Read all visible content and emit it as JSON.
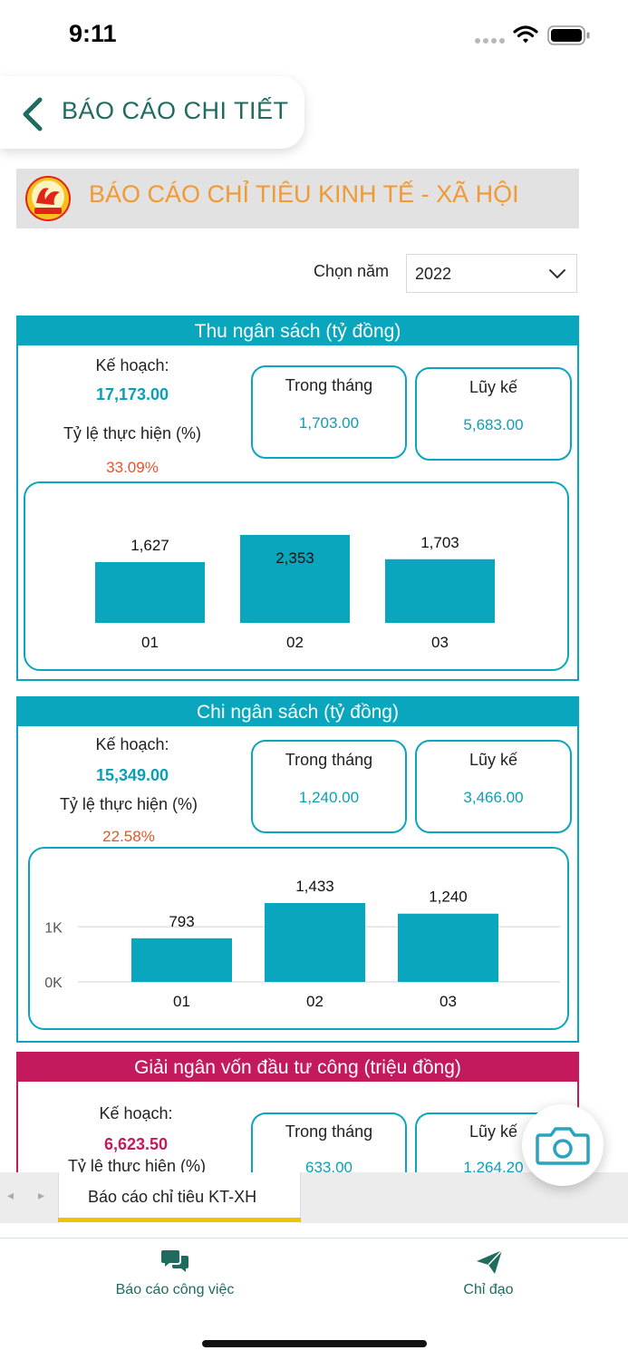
{
  "status_bar": {
    "time": "9:11"
  },
  "header": {
    "title": "BÁO CÁO CHI TIẾT"
  },
  "banner": {
    "title": "BÁO CÁO CHỈ TIÊU KINH TẾ - XÃ HỘI"
  },
  "year_select": {
    "label": "Chọn năm",
    "value": "2022"
  },
  "sections": [
    {
      "title": "Thu ngân sách (tỷ đồng)",
      "plan_label": "Kế hoạch:",
      "plan_value": "17,173.00",
      "ratio_label": "Tỷ lệ thực hiện (%)",
      "ratio_value": "33.09%",
      "month_label": "Trong tháng",
      "month_value": "1,703.00",
      "cumulative_label": "Lũy kế",
      "cumulative_value": "5,683.00"
    },
    {
      "title": "Chi ngân sách (tỷ đồng)",
      "plan_label": "Kế hoạch:",
      "plan_value": "15,349.00",
      "ratio_label": "Tỷ lệ thực hiện (%)",
      "ratio_value": "22.58%",
      "month_label": "Trong tháng",
      "month_value": "1,240.00",
      "cumulative_label": "Lũy kế",
      "cumulative_value": "3,466.00"
    },
    {
      "title": "Giải ngân vốn đầu tư công (triệu đồng)",
      "plan_label": "Kế hoạch:",
      "plan_value": "6,623.50",
      "ratio_label": "Tỷ lệ thực hiện (%)",
      "month_label": "Trong tháng",
      "month_value": "633.00",
      "cumulative_label": "Lũy kế",
      "cumulative_value": "1,264.20"
    }
  ],
  "chart_data": [
    {
      "type": "bar",
      "categories": [
        "01",
        "02",
        "03"
      ],
      "values": [
        1627,
        2353,
        1703
      ],
      "data_labels": [
        "1,627",
        "2,353",
        "1,703"
      ],
      "grid": false,
      "color": "#0aa6bd"
    },
    {
      "type": "bar",
      "categories": [
        "01",
        "02",
        "03"
      ],
      "values": [
        793,
        1433,
        1240
      ],
      "data_labels": [
        "793",
        "1,433",
        "1,240"
      ],
      "y_ticks": [
        "0K",
        "1K"
      ],
      "ylim": [
        0,
        1433
      ],
      "grid": true,
      "color": "#0aa6bd"
    }
  ],
  "tabs": {
    "active": "Báo cáo chỉ tiêu KT-XH"
  },
  "bottom_nav": [
    {
      "label": "Báo cáo công việc",
      "icon": "chat-bubbles-icon"
    },
    {
      "label": "Chỉ đạo",
      "icon": "paper-plane-icon"
    }
  ],
  "colors": {
    "accent": "#0aa6bd",
    "brand_green": "#1f6b5e",
    "orange": "#ef9a35",
    "magenta": "#c3195d",
    "red": "#e5542b"
  }
}
